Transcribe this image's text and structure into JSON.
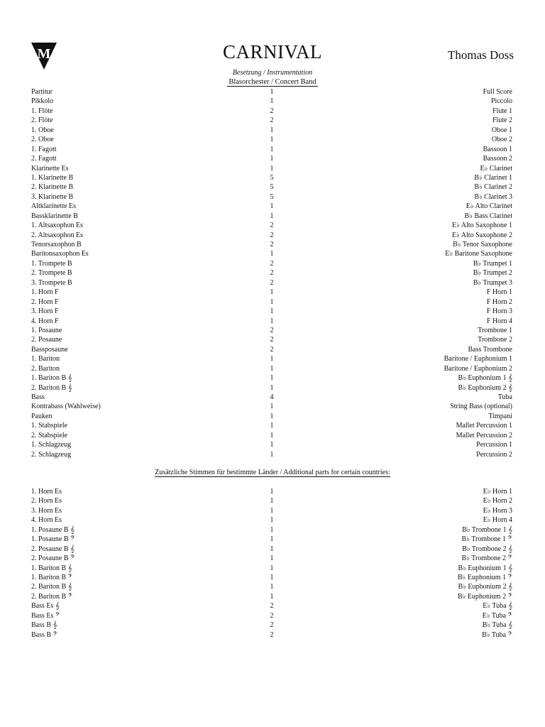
{
  "header": {
    "logo_letter": "M",
    "title": "CARNIVAL",
    "composer": "Thomas Doss",
    "subtitle": "Besetzung / Instrumentation",
    "ensemble": "Blasorchester / Concert Band"
  },
  "main_parts": [
    [
      "Partitur",
      "1",
      "Full Score"
    ],
    [
      "Pikkolo",
      "1",
      "Piccolo"
    ],
    [
      "1. Flöte",
      "2",
      "Flute 1"
    ],
    [
      "2. Flöte",
      "2",
      "Flute 2"
    ],
    [
      "1. Oboe",
      "1",
      "Oboe 1"
    ],
    [
      "2. Oboe",
      "1",
      "Oboe 2"
    ],
    [
      "1. Fagott",
      "1",
      "Bassoon 1"
    ],
    [
      "2. Fagott",
      "1",
      "Bassoon 2"
    ],
    [
      "Klarinette Es",
      "1",
      "E♭ Clarinet"
    ],
    [
      "1. Klarinette B",
      "5",
      "B♭ Clarinet 1"
    ],
    [
      "2. Klarinette B",
      "5",
      "B♭ Clarinet 2"
    ],
    [
      "3. Klarinette B",
      "5",
      "B♭ Clarinet 3"
    ],
    [
      "Altklarinette Es",
      "1",
      "E♭ Alto Clarinet"
    ],
    [
      "Bassklarinette B",
      "1",
      "B♭ Bass Clarinet"
    ],
    [
      "1. Altsaxophon Es",
      "2",
      "E♭ Alto Saxophone 1"
    ],
    [
      "2. Altsaxophon Es",
      "2",
      "E♭ Alto Saxophone 2"
    ],
    [
      "Tenorsaxophon B",
      "2",
      "B♭ Tenor Saxophone"
    ],
    [
      "Baritonsaxophon Es",
      "1",
      "E♭ Baritone Saxophone"
    ],
    [
      "1. Trompete B",
      "2",
      "B♭ Trumpet 1"
    ],
    [
      "2. Trompete B",
      "2",
      "B♭ Trumpet 2"
    ],
    [
      "3. Trompete B",
      "2",
      "B♭ Trumpet 3"
    ],
    [
      "1. Horn F",
      "1",
      "F Horn 1"
    ],
    [
      "2. Horn F",
      "1",
      "F Horn 2"
    ],
    [
      "3. Horn F",
      "1",
      "F Horn 3"
    ],
    [
      "4. Horn F",
      "1",
      "F Horn 4"
    ],
    [
      "1. Posaune",
      "2",
      "Trombone 1"
    ],
    [
      "2. Posaune",
      "2",
      "Trombone 2"
    ],
    [
      "Bassposaune",
      "2",
      "Bass Trombone"
    ],
    [
      "1. Bariton",
      "1",
      "Baritone / Euphonium 1"
    ],
    [
      "2. Bariton",
      "1",
      "Baritone / Euphonium 2"
    ],
    [
      "1. Bariton B 𝄞",
      "1",
      "B♭ Euphonium 1 𝄞"
    ],
    [
      "2. Bariton B 𝄞",
      "1",
      "B♭ Euphonium 2 𝄞"
    ],
    [
      "Bass",
      "4",
      "Tuba"
    ],
    [
      "Kontrabass (Wahlweise)",
      "1",
      "String Bass (optional)"
    ],
    [
      "Pauken",
      "1",
      "Timpani"
    ],
    [
      "1. Stabspiele",
      "1",
      "Mallet Percussion 1"
    ],
    [
      "2. Stabspiele",
      "1",
      "Mallet Percussion 2"
    ],
    [
      "1. Schlagzeug",
      "1",
      "Percussion 1"
    ],
    [
      "2. Schlagzeug",
      "1",
      "Percussion 2"
    ]
  ],
  "additional_heading": "Zusätzliche Stimmen für bestimmte Länder / Additional parts for certain countries:",
  "additional_parts": [
    [
      "1. Horn Es",
      "1",
      "E♭ Horn 1"
    ],
    [
      "2. Horn Es",
      "1",
      "E♭ Horn 2"
    ],
    [
      "3. Horn Es",
      "1",
      "E♭ Horn 3"
    ],
    [
      "4. Horn Es",
      "1",
      "E♭ Horn 4"
    ],
    [
      "1. Posaune B 𝄞",
      "1",
      "B♭ Trombone 1 𝄞"
    ],
    [
      "1. Posaune B 𝄢",
      "1",
      "B♭ Trombone 1 𝄢"
    ],
    [
      "2. Posaune B 𝄞",
      "1",
      "B♭ Trombone 2 𝄞"
    ],
    [
      "2. Posaune B 𝄢",
      "1",
      "B♭ Trombone 2 𝄢"
    ],
    [
      "1. Bariton B 𝄞",
      "1",
      "B♭ Euphonium 1 𝄞"
    ],
    [
      "1. Bariton B 𝄢",
      "1",
      "B♭ Euphonium 1 𝄢"
    ],
    [
      "2. Bariton B 𝄞",
      "1",
      "B♭ Euphonium 2 𝄞"
    ],
    [
      "2. Bariton B 𝄢",
      "1",
      "B♭ Euphonium 2 𝄢"
    ],
    [
      "Bass Es 𝄞",
      "2",
      "E♭ Tuba 𝄞"
    ],
    [
      "Bass Es 𝄢",
      "2",
      "E♭ Tuba 𝄢"
    ],
    [
      "Bass B 𝄞",
      "2",
      "B♭ Tuba 𝄞"
    ],
    [
      "Bass B 𝄢",
      "2",
      "B♭ Tuba 𝄢"
    ]
  ]
}
